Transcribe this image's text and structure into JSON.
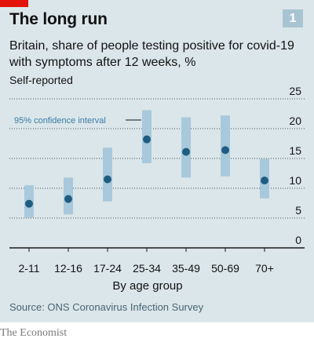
{
  "header": {
    "title": "The long run",
    "chart_number": "1",
    "subtitle": "Britain, share of people testing positive for covid-19 with symptoms after 12 weeks, %",
    "note": "Self-reported"
  },
  "footer": {
    "source": "Source: ONS Coronavirus Infection Survey",
    "brand": "The Economist"
  },
  "colors": {
    "background": "#dbe6ea",
    "ci_bar": "#a8c9db",
    "point": "#1f5c82",
    "gridline": "#1a1a1a",
    "accent": "#e3120b"
  },
  "chart_data": {
    "type": "scatter",
    "xlabel": "By age group",
    "categories": [
      "2-11",
      "12-16",
      "17-24",
      "25-34",
      "35-49",
      "50-69",
      "70+"
    ],
    "values": [
      7.4,
      8.2,
      11.5,
      18.2,
      16.1,
      16.4,
      11.3
    ],
    "ci_low": [
      5.1,
      5.6,
      7.8,
      14.2,
      11.8,
      12.0,
      8.3
    ],
    "ci_high": [
      10.5,
      11.8,
      16.8,
      23.1,
      21.9,
      22.2,
      14.9
    ],
    "ylim": [
      0,
      25
    ],
    "yticks": [
      "0",
      "5",
      "10",
      "15",
      "20",
      "25"
    ],
    "y_axis_side": "right",
    "grid": true,
    "annotation": "95% confidence interval"
  }
}
